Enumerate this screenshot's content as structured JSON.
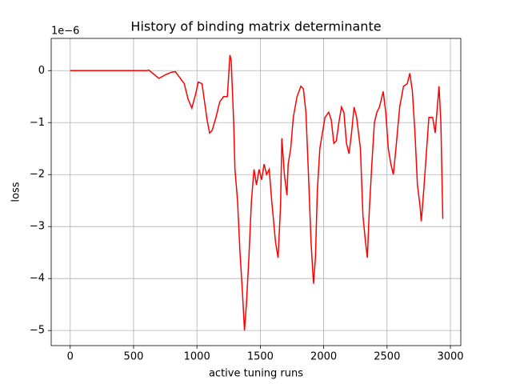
{
  "chart_data": {
    "type": "line",
    "title": "History of binding matrix determinante",
    "x_label": "active tuning runs",
    "y_label": "loss",
    "y_offset_label": "1e−6",
    "grid": true,
    "xlim": [
      -150,
      3082
    ],
    "ylim": [
      -5.29,
      0.62
    ],
    "xticks": [
      0,
      500,
      1000,
      1500,
      2000,
      2500,
      3000
    ],
    "yticks": [
      {
        "value": 0,
        "label": "0"
      },
      {
        "value": -1,
        "label": "−1"
      },
      {
        "value": -2,
        "label": "−2"
      },
      {
        "value": -3,
        "label": "−3"
      },
      {
        "value": -4,
        "label": "−4"
      },
      {
        "value": -5,
        "label": "−5"
      }
    ],
    "x": [
      0,
      600,
      620,
      650,
      700,
      750,
      800,
      830,
      860,
      900,
      930,
      960,
      990,
      1010,
      1040,
      1060,
      1080,
      1100,
      1120,
      1150,
      1180,
      1210,
      1240,
      1260,
      1270,
      1290,
      1300,
      1320,
      1340,
      1360,
      1375,
      1390,
      1410,
      1430,
      1450,
      1470,
      1490,
      1510,
      1530,
      1550,
      1570,
      1590,
      1620,
      1640,
      1660,
      1670,
      1690,
      1710,
      1720,
      1740,
      1760,
      1790,
      1820,
      1840,
      1860,
      1880,
      1900,
      1920,
      1935,
      1950,
      1970,
      1990,
      2010,
      2040,
      2060,
      2080,
      2100,
      2120,
      2140,
      2160,
      2180,
      2200,
      2220,
      2240,
      2260,
      2290,
      2310,
      2330,
      2345,
      2360,
      2380,
      2400,
      2420,
      2440,
      2470,
      2490,
      2510,
      2530,
      2550,
      2570,
      2600,
      2630,
      2660,
      2680,
      2700,
      2720,
      2740,
      2760,
      2770,
      2790,
      2810,
      2830,
      2860,
      2880,
      2900,
      2910,
      2925,
      2940
    ],
    "series": [
      {
        "name": "determinante",
        "color": "#ff0000",
        "values": [
          0,
          0,
          0.01,
          -0.05,
          -0.15,
          -0.08,
          -0.03,
          -0.02,
          -0.12,
          -0.25,
          -0.55,
          -0.72,
          -0.45,
          -0.22,
          -0.25,
          -0.6,
          -0.95,
          -1.2,
          -1.15,
          -0.9,
          -0.6,
          -0.5,
          -0.5,
          0.3,
          0.2,
          -1.0,
          -1.9,
          -2.5,
          -3.5,
          -4.3,
          -5.0,
          -4.5,
          -3.6,
          -2.5,
          -1.9,
          -2.2,
          -1.9,
          -2.1,
          -1.8,
          -2.0,
          -1.9,
          -2.5,
          -3.3,
          -3.6,
          -2.6,
          -1.3,
          -2.0,
          -2.4,
          -1.8,
          -1.5,
          -0.9,
          -0.5,
          -0.3,
          -0.35,
          -0.8,
          -2.0,
          -3.3,
          -4.1,
          -3.6,
          -2.3,
          -1.5,
          -1.2,
          -0.9,
          -0.8,
          -0.95,
          -1.4,
          -1.35,
          -1.0,
          -0.7,
          -0.8,
          -1.4,
          -1.6,
          -1.2,
          -0.7,
          -0.9,
          -1.5,
          -2.8,
          -3.3,
          -3.6,
          -2.7,
          -1.8,
          -1.0,
          -0.8,
          -0.7,
          -0.4,
          -0.8,
          -1.5,
          -1.8,
          -2.0,
          -1.5,
          -0.7,
          -0.3,
          -0.25,
          -0.05,
          -0.4,
          -1.2,
          -2.2,
          -2.6,
          -2.9,
          -2.3,
          -1.6,
          -0.9,
          -0.9,
          -1.2,
          -0.6,
          -0.3,
          -1.0,
          -2.85
        ]
      }
    ]
  }
}
